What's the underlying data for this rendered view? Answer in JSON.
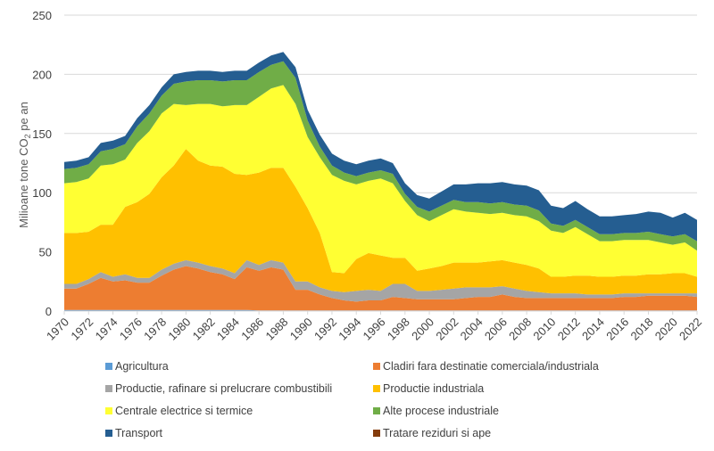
{
  "chart_data": {
    "type": "area",
    "stacked": true,
    "title": "",
    "xlabel": "",
    "ylabel": "Milioane tone CO",
    "ylabel_subscript": "2",
    "ylabel_suffix": " pe an",
    "ylim": [
      0,
      250
    ],
    "yticks": [
      0,
      50,
      100,
      150,
      200,
      250
    ],
    "grid": true,
    "legend_position": "bottom",
    "x": [
      1970,
      1971,
      1972,
      1973,
      1974,
      1975,
      1976,
      1977,
      1978,
      1979,
      1980,
      1981,
      1982,
      1983,
      1984,
      1985,
      1986,
      1987,
      1988,
      1989,
      1990,
      1991,
      1992,
      1993,
      1994,
      1995,
      1996,
      1997,
      1998,
      1999,
      2000,
      2001,
      2002,
      2003,
      2004,
      2005,
      2006,
      2007,
      2008,
      2009,
      2010,
      2011,
      2012,
      2013,
      2014,
      2015,
      2016,
      2017,
      2018,
      2019,
      2020,
      2021,
      2022
    ],
    "xtick_labels": [
      "1970",
      "1972",
      "1974",
      "1976",
      "1978",
      "1980",
      "1982",
      "1984",
      "1986",
      "1988",
      "1990",
      "1992",
      "1994",
      "1996",
      "1998",
      "2000",
      "2002",
      "2004",
      "2006",
      "2008",
      "2010",
      "2012",
      "2014",
      "2016",
      "2018",
      "2020",
      "2022"
    ],
    "series": [
      {
        "name": "Agricultura",
        "color": "#5B9BD5",
        "values": [
          1,
          1,
          1,
          1,
          1,
          1,
          1,
          1,
          1,
          1,
          1,
          1,
          1,
          1,
          1,
          1,
          0.5,
          0.5,
          0.5,
          0.5,
          0.5,
          0.5,
          0.5,
          0.5,
          0.5,
          0.5,
          0.5,
          0.5,
          0.5,
          0.5,
          0.5,
          0.5,
          0.5,
          0.5,
          0.5,
          0.5,
          0.5,
          0.5,
          0.5,
          0.5,
          0.5,
          0.5,
          0.5,
          0.5,
          0.5,
          0.5,
          0.5,
          0.5,
          0.5,
          0.5,
          0.5,
          0.5,
          0.5
        ]
      },
      {
        "name": "Cladiri fara destinatie comerciala/industriala",
        "color": "#ED7D31",
        "values": [
          18,
          18,
          22,
          27,
          24,
          25,
          23,
          23,
          29,
          34,
          37,
          35,
          32,
          30,
          26,
          36,
          33.5,
          36.5,
          34.5,
          17.5,
          17.5,
          13.5,
          10.5,
          8.5,
          7.5,
          8.5,
          8.5,
          11.5,
          10.5,
          9.5,
          9.5,
          9.5,
          9.5,
          10.5,
          11.5,
          11.5,
          13.5,
          11.5,
          10.5,
          10.5,
          10.5,
          10.5,
          10.5,
          10.5,
          10.5,
          10.5,
          11.5,
          11.5,
          12.5,
          12.5,
          12.5,
          12.5,
          11.5
        ]
      },
      {
        "name": "Productie, rafinare si prelucrare combustibili",
        "color": "#A5A5A5",
        "values": [
          4,
          4,
          4,
          5,
          4,
          5,
          4,
          4,
          5,
          5,
          5,
          5,
          5,
          5,
          5,
          6,
          5,
          6,
          6,
          7,
          7,
          6,
          6,
          7,
          9,
          9,
          8,
          11,
          12,
          7,
          7,
          8,
          9,
          9,
          8,
          8,
          7,
          7,
          6,
          5,
          4,
          4,
          4,
          3,
          3,
          3,
          3,
          3,
          2,
          2,
          2,
          2,
          3
        ]
      },
      {
        "name": "Productie industriala",
        "color": "#FFC000",
        "values": [
          43,
          43,
          40,
          40,
          44,
          57,
          64,
          71,
          78,
          83,
          94,
          86,
          85,
          86,
          84,
          72,
          78,
          78,
          80,
          80,
          62,
          46,
          16,
          16,
          27,
          31,
          30,
          22,
          22,
          17,
          19,
          20,
          22,
          21,
          21,
          22,
          22,
          22,
          22,
          20,
          14,
          14,
          15,
          16,
          15,
          15,
          15,
          15,
          16,
          16,
          17,
          17,
          14
        ]
      },
      {
        "name": "Centrale electrice si termice",
        "color": "#FFFF33",
        "values": [
          42,
          43,
          45,
          50,
          51,
          40,
          50,
          53,
          54,
          52,
          37,
          48,
          52,
          51,
          58,
          59,
          64,
          67,
          70,
          70,
          60,
          64,
          82,
          78,
          63,
          61,
          65,
          63,
          48,
          47,
          40,
          43,
          45,
          43,
          42,
          40,
          40,
          40,
          41,
          40,
          39,
          37,
          41,
          35,
          30,
          30,
          30,
          30,
          29,
          27,
          24,
          26,
          22
        ]
      },
      {
        "name": "Alte procese industriale",
        "color": "#70AD47",
        "values": [
          12,
          12,
          12,
          12,
          13,
          13,
          14,
          15,
          15,
          17,
          20,
          20,
          20,
          21,
          21,
          21,
          21,
          20,
          20,
          22,
          14,
          9,
          8,
          7,
          7,
          7,
          7,
          8,
          6,
          7,
          8,
          8,
          8,
          8,
          9,
          9,
          9,
          9,
          9,
          9,
          6,
          6,
          6,
          6,
          6,
          6,
          6,
          6,
          7,
          7,
          7,
          7,
          8
        ]
      },
      {
        "name": "Transport",
        "color": "#255E91",
        "values": [
          6,
          6,
          6,
          7,
          7,
          7,
          7,
          7,
          7,
          8,
          8,
          8,
          8,
          8,
          8,
          8,
          8,
          8,
          8,
          9,
          9,
          10,
          10,
          10,
          10,
          10,
          10,
          9,
          9,
          10,
          11,
          12,
          13,
          15,
          16,
          17,
          17,
          17,
          17,
          17,
          15,
          15,
          16,
          15,
          15,
          15,
          15,
          16,
          17,
          18,
          16,
          18,
          18
        ]
      },
      {
        "name": "Tratare reziduri si ape",
        "color": "#843C0C",
        "values": [
          0,
          0,
          0,
          0,
          0,
          0,
          0,
          0,
          0,
          0,
          0,
          0,
          0,
          0,
          0,
          0,
          0,
          0,
          0,
          0,
          0,
          0,
          0,
          0,
          0,
          0,
          0,
          0,
          0,
          0,
          0,
          0,
          0,
          0,
          0,
          0,
          0,
          0,
          0,
          0,
          0,
          0,
          0,
          0,
          0,
          0,
          0,
          0,
          0,
          0,
          0,
          0,
          0
        ]
      }
    ]
  }
}
